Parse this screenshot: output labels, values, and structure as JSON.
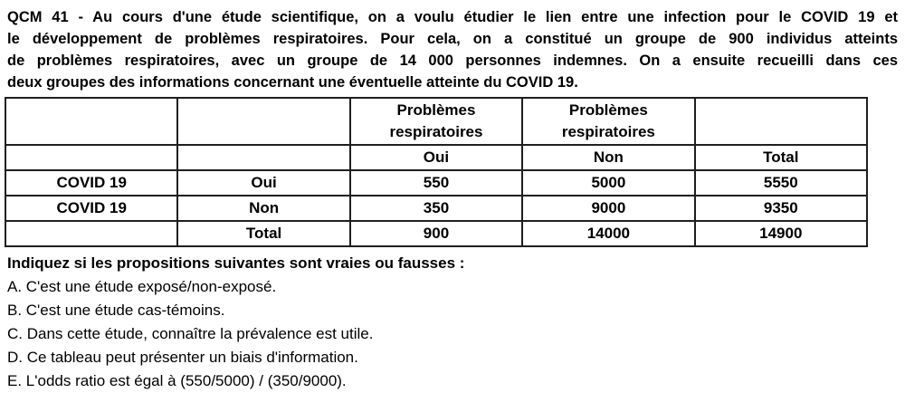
{
  "question": {
    "lines": [
      "QCM 41 - Au cours d'une étude scientifique, on a voulu étudier le lien entre une infection pour le COVID 19 et",
      "le développement de problèmes respiratoires. Pour cela, on a constitué un groupe de 900 individus atteints",
      "de problèmes respiratoires, avec un groupe de 14 000 personnes indemnes. On a ensuite recueilli dans ces",
      "deux groupes des informations concernant une éventuelle atteinte du COVID 19."
    ]
  },
  "table": {
    "header_row1": [
      "",
      "",
      "Problèmes respiratoires",
      "Problèmes respiratoires",
      ""
    ],
    "header_row2": [
      "",
      "",
      "Oui",
      "Non",
      "Total"
    ],
    "rows": [
      [
        "COVID 19",
        "Oui",
        "550",
        "5000",
        "5550"
      ],
      [
        "COVID 19",
        "Non",
        "350",
        "9000",
        "9350"
      ],
      [
        "",
        "Total",
        "900",
        "14000",
        "14900"
      ]
    ]
  },
  "instruction": "Indiquez si les propositions suivantes sont vraies ou fausses :",
  "propositions": [
    "A. C'est une étude exposé/non-exposé.",
    "B. C'est une étude cas-témoins.",
    "C. Dans cette étude, connaître la prévalence est utile.",
    "D. Ce tableau peut présenter un biais d'information.",
    "E. L'odds ratio est égal à (550/5000) / (350/9000)."
  ],
  "colors": {
    "text": "#000000",
    "border": "#1f1f1f",
    "background": "#ffffff"
  }
}
